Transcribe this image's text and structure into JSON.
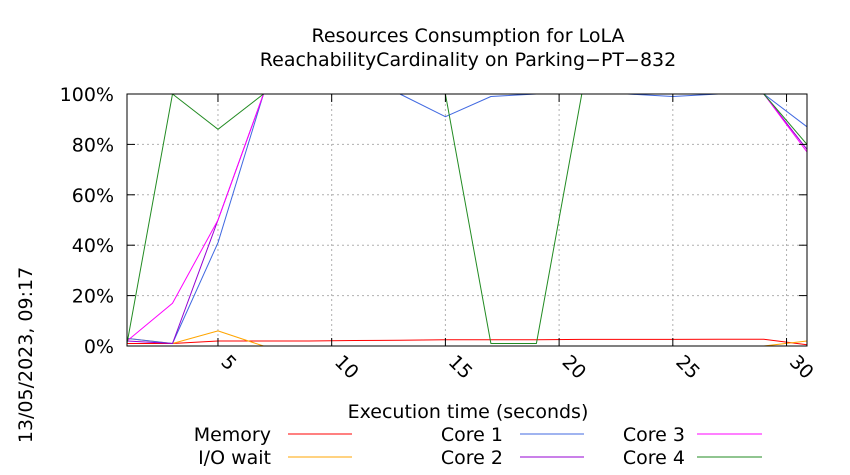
{
  "chart_data": {
    "type": "line",
    "title": "Resources Consumption for LoLA",
    "subtitle": "ReachabilityCardinality on Parking−PT−832",
    "xlabel": "Execution time (seconds)",
    "ylabel": "",
    "timestamp": "13/05/2023, 09:17",
    "xlim": [
      1,
      30.9
    ],
    "ylim": [
      0,
      100
    ],
    "x_ticks": [
      5,
      10,
      15,
      20,
      25,
      30
    ],
    "y_ticks": [
      0,
      20,
      40,
      60,
      80,
      100
    ],
    "y_tick_labels": [
      "0%",
      "20%",
      "40%",
      "60%",
      "80%",
      "100%"
    ],
    "grid": true,
    "legend_placement": "bottom",
    "series": [
      {
        "name": "Memory",
        "color": "#ff0000",
        "points": [
          [
            1,
            1
          ],
          [
            3,
            1
          ],
          [
            5,
            2
          ],
          [
            7,
            2
          ],
          [
            9,
            2
          ],
          [
            11,
            2.2
          ],
          [
            13,
            2.3
          ],
          [
            15,
            2.5
          ],
          [
            17,
            2.5
          ],
          [
            19,
            2.5
          ],
          [
            21,
            2.6
          ],
          [
            23,
            2.6
          ],
          [
            25,
            2.6
          ],
          [
            27,
            2.7
          ],
          [
            29,
            2.7
          ],
          [
            30.9,
            0.5
          ]
        ]
      },
      {
        "name": "I/O wait",
        "color": "#ffa500",
        "points": [
          [
            1,
            3
          ],
          [
            3,
            1
          ],
          [
            5,
            6
          ],
          [
            7,
            0
          ],
          [
            9,
            0
          ],
          [
            11,
            0
          ],
          [
            13,
            0
          ],
          [
            15,
            0
          ],
          [
            17,
            0
          ],
          [
            19,
            0
          ],
          [
            21,
            0
          ],
          [
            23,
            0
          ],
          [
            25,
            0
          ],
          [
            27,
            0
          ],
          [
            29,
            0
          ],
          [
            30.9,
            2
          ]
        ]
      },
      {
        "name": "Core 1",
        "color": "#4169e1",
        "points": [
          [
            1,
            3
          ],
          [
            3,
            1
          ],
          [
            5,
            41
          ],
          [
            7,
            100
          ],
          [
            9,
            100
          ],
          [
            11,
            100
          ],
          [
            13,
            100
          ],
          [
            15,
            91
          ],
          [
            17,
            99
          ],
          [
            19,
            100
          ],
          [
            21,
            100
          ],
          [
            23,
            100
          ],
          [
            25,
            99
          ],
          [
            27,
            100
          ],
          [
            29,
            100
          ],
          [
            30.9,
            87
          ]
        ]
      },
      {
        "name": "Core 2",
        "color": "#9400d3",
        "points": [
          [
            1,
            2
          ],
          [
            3,
            1
          ],
          [
            5,
            50
          ],
          [
            7,
            100
          ],
          [
            9,
            100
          ],
          [
            11,
            100
          ],
          [
            13,
            100
          ],
          [
            15,
            100
          ],
          [
            17,
            100
          ],
          [
            19,
            100
          ],
          [
            21,
            100
          ],
          [
            23,
            100
          ],
          [
            25,
            100
          ],
          [
            27,
            100
          ],
          [
            29,
            100
          ],
          [
            30.9,
            78
          ]
        ]
      },
      {
        "name": "Core 3",
        "color": "#ff00ff",
        "points": [
          [
            1,
            2
          ],
          [
            3,
            17
          ],
          [
            5,
            50
          ],
          [
            7,
            100
          ],
          [
            9,
            100
          ],
          [
            11,
            100
          ],
          [
            13,
            100
          ],
          [
            15,
            100
          ],
          [
            17,
            100
          ],
          [
            19,
            100
          ],
          [
            21,
            100
          ],
          [
            23,
            100
          ],
          [
            25,
            100
          ],
          [
            27,
            100
          ],
          [
            29,
            100
          ],
          [
            30.9,
            77
          ]
        ]
      },
      {
        "name": "Core 4",
        "color": "#228b22",
        "points": [
          [
            1,
            1
          ],
          [
            3,
            100
          ],
          [
            5,
            86
          ],
          [
            7,
            100
          ],
          [
            9,
            100
          ],
          [
            11,
            100
          ],
          [
            13,
            100
          ],
          [
            15,
            100
          ],
          [
            17,
            1
          ],
          [
            19,
            1
          ],
          [
            21,
            100
          ],
          [
            23,
            100
          ],
          [
            25,
            100
          ],
          [
            27,
            100
          ],
          [
            29,
            100
          ],
          [
            30.9,
            80
          ]
        ]
      }
    ]
  }
}
